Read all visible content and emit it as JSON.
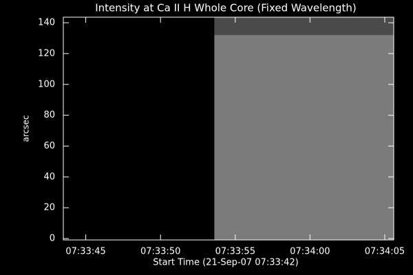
{
  "chart_data": {
    "type": "image",
    "title": "Intensity at Ca II H Whole Core (Fixed Wavelength)",
    "xlabel": "Start Time (21-Sep-07 07:33:42)",
    "ylabel": "arcsec",
    "xlim": [
      1.5,
      23.6
    ],
    "xticks": [
      {
        "value": 3,
        "label": "07:33:45"
      },
      {
        "value": 8,
        "label": "07:33:50"
      },
      {
        "value": 13,
        "label": "07:33:55"
      },
      {
        "value": 18,
        "label": "07:34:00"
      },
      {
        "value": 23,
        "label": "07:34:05"
      }
    ],
    "ylim": [
      -0.9,
      143.6
    ],
    "yticks": [
      0,
      20,
      40,
      60,
      80,
      100,
      120,
      140
    ],
    "regions": [
      {
        "x": [
          11.6,
          23.6
        ],
        "y": [
          -0.9,
          132
        ],
        "color": "#7b7b7b"
      },
      {
        "x": [
          11.6,
          23.6
        ],
        "y": [
          132,
          143.6
        ],
        "color": "#4b4b4b"
      }
    ]
  }
}
